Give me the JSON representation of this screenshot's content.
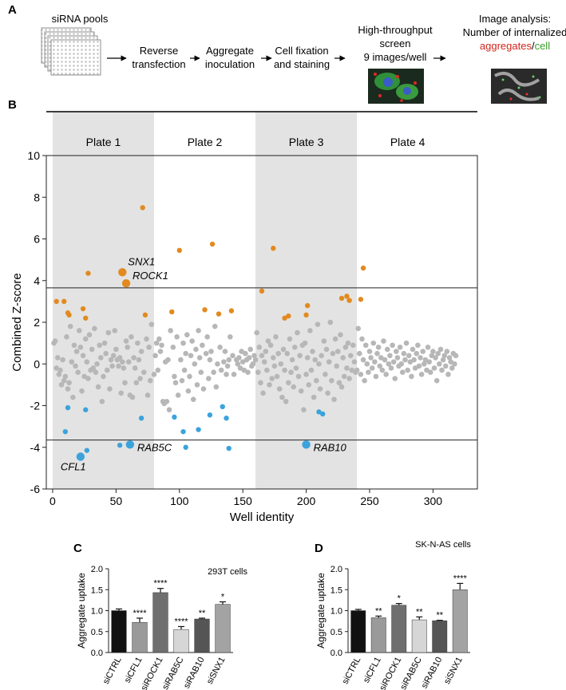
{
  "workflow": {
    "panel": "A",
    "pool_label": "siRNA pools",
    "steps": [
      [
        "Reverse",
        "transfection"
      ],
      [
        "Aggregate",
        "inoculation"
      ],
      [
        "Cell fixation",
        "and staining"
      ]
    ],
    "screen": [
      "High-throughput",
      "screen",
      "9 images/well"
    ],
    "analysis": {
      "lines": [
        "Image analysis:",
        "Number of internalized"
      ],
      "aggregates": "aggregates",
      "separator": "/",
      "cell": "cell",
      "aggregates_color": "#d2261c",
      "cell_color": "#3a9c2a"
    }
  },
  "chart_data": [
    {
      "type": "scatter",
      "panel": "B",
      "xlabel": "Well identity",
      "ylabel": "Combined Z-score",
      "xlim": [
        -5,
        335
      ],
      "ylim": [
        -6,
        10
      ],
      "xticks": [
        0,
        50,
        100,
        150,
        200,
        250,
        300
      ],
      "yticks": [
        -6,
        -4,
        -2,
        0,
        2,
        4,
        6,
        8,
        10
      ],
      "thresholds": [
        3.65,
        -3.65
      ],
      "plate_shading": "#e3e3e3",
      "plates": [
        {
          "label": "Plate 1",
          "range": [
            0,
            80
          ],
          "shaded": true
        },
        {
          "label": "Plate 2",
          "range": [
            80,
            160
          ],
          "shaded": false
        },
        {
          "label": "Plate 3",
          "range": [
            160,
            240
          ],
          "shaded": true
        },
        {
          "label": "Plate 4",
          "range": [
            240,
            320
          ],
          "shaded": false
        }
      ],
      "series": [
        {
          "color": "#b7b7b7",
          "x": [
            1,
            2,
            3,
            4,
            5,
            6,
            7,
            8,
            9,
            10,
            11,
            12,
            13,
            14,
            15,
            16,
            17,
            18,
            19,
            20,
            21,
            22,
            23,
            24,
            25,
            26,
            27,
            28,
            29,
            30,
            31,
            32,
            33,
            34,
            35,
            36,
            37,
            38,
            39,
            40,
            41,
            42,
            43,
            44,
            45,
            46,
            47,
            48,
            49,
            50,
            51,
            52,
            53,
            54,
            55,
            56,
            57,
            58,
            59,
            60,
            61,
            62,
            63,
            64,
            65,
            66,
            67,
            68,
            69,
            70,
            72,
            74,
            75,
            76,
            77,
            78,
            80,
            81,
            82,
            83,
            84,
            85,
            86,
            87,
            88,
            89,
            90,
            91,
            92,
            93,
            95,
            96,
            97,
            98,
            99,
            101,
            102,
            103,
            104,
            105,
            106,
            107,
            108,
            109,
            110,
            111,
            112,
            113,
            114,
            115,
            116,
            117,
            118,
            119,
            121,
            122,
            123,
            124,
            125,
            127,
            128,
            129,
            130,
            132,
            133,
            135,
            136,
            137,
            138,
            139,
            140,
            142,
            143,
            145,
            146,
            147,
            148,
            149,
            150,
            151,
            152,
            153,
            154,
            155,
            156,
            157,
            158,
            159,
            160,
            161,
            162,
            163,
            164,
            165,
            166,
            167,
            168,
            169,
            170,
            171,
            172,
            173,
            174,
            175,
            176,
            177,
            178,
            179,
            180,
            181,
            182,
            183,
            184,
            185,
            186,
            187,
            188,
            189,
            190,
            191,
            192,
            193,
            194,
            195,
            196,
            197,
            198,
            199,
            200,
            201,
            202,
            203,
            204,
            205,
            206,
            207,
            208,
            209,
            210,
            211,
            212,
            214,
            215,
            216,
            217,
            218,
            219,
            220,
            221,
            222,
            223,
            224,
            225,
            226,
            227,
            228,
            229,
            230,
            231,
            232,
            233,
            234,
            235,
            236,
            237,
            238,
            239,
            240,
            241,
            242,
            243,
            244,
            245,
            246,
            247,
            248,
            249,
            250,
            251,
            252,
            253,
            254,
            255,
            256,
            257,
            258,
            259,
            260,
            261,
            262,
            263,
            264,
            265,
            266,
            267,
            268,
            269,
            270,
            271,
            272,
            273,
            274,
            275,
            276,
            277,
            278,
            279,
            280,
            281,
            282,
            283,
            284,
            285,
            286,
            287,
            288,
            289,
            290,
            291,
            292,
            293,
            294,
            295,
            296,
            297,
            298,
            299,
            300,
            301,
            302,
            303,
            304,
            305,
            306,
            307,
            308,
            309,
            310,
            311,
            312,
            313,
            314,
            315,
            316,
            317,
            318
          ],
          "values": [
            1.0,
            1.1,
            -0.2,
            0.3,
            -0.5,
            -0.3,
            -1.0,
            0.2,
            -0.8,
            -0.6,
            1.3,
            -1.2,
            -0.9,
            1.8,
            0.1,
            -1.6,
            0.9,
            -0.1,
            0.6,
            -0.4,
            1.6,
            0.8,
            -1.3,
            0.4,
            -0.6,
            1.2,
            0.1,
            -0.7,
            1.4,
            -0.3,
            0.7,
            -0.2,
            1.7,
            -0.4,
            0.0,
            -1.1,
            0.9,
            0.3,
            -1.8,
            -0.6,
            1.0,
            0.5,
            -0.3,
            1.5,
            -1.2,
            0.2,
            -0.1,
            0.4,
            1.6,
            0.7,
            0.2,
            -0.1,
            0.3,
            -1.4,
            0.1,
            -0.2,
            -0.9,
            1.1,
            0.8,
            0.1,
            -1.5,
            1.3,
            -1.6,
            0.3,
            -0.2,
            -0.9,
            1.0,
            0.2,
            -0.7,
            0.6,
            -0.4,
            1.2,
            -1.5,
            0.8,
            -0.8,
            1.9,
            -0.5,
            0.4,
            1.0,
            -0.3,
            1.2,
            0.6,
            0.9,
            -1.8,
            -1.9,
            0.1,
            -1.8,
            0.2,
            -2.2,
            1.6,
            0.8,
            -0.6,
            -0.9,
            1.3,
            -1.5,
            0.2,
            -0.8,
            1.0,
            -0.3,
            0.5,
            1.4,
            -1.3,
            -0.6,
            0.4,
            1.1,
            -1.7,
            0.0,
            0.7,
            -1.0,
            1.6,
            0.3,
            -0.4,
            0.9,
            -1.2,
            0.5,
            1.3,
            -0.7,
            0.2,
            0.6,
            -0.4,
            1.8,
            -1.1,
            0.0,
            0.8,
            -0.3,
            0.1,
            0.6,
            -0.5,
            -0.1,
            0.2,
            1.3,
            0.4,
            -0.5,
            0.2,
            0.0,
            0.3,
            -0.2,
            0.6,
            0.1,
            -0.3,
            0.5,
            0.2,
            -0.4,
            0.3,
            0.7,
            -0.1,
            0.0,
            0.4,
            0.2,
            1.5,
            -0.4,
            0.8,
            -0.9,
            0.4,
            -1.4,
            0.1,
            0.6,
            -0.3,
            1.1,
            -1.0,
            0.9,
            -0.7,
            0.3,
            -0.1,
            1.3,
            -0.6,
            0.5,
            -1.2,
            0.0,
            -1.6,
            0.7,
            -0.3,
            -1.8,
            0.5,
            -0.9,
            1.2,
            -0.4,
            0.2,
            -1.1,
            0.8,
            -0.2,
            1.5,
            -0.6,
            0.4,
            -1.3,
            0.9,
            -2.2,
            1.0,
            -0.5,
            0.3,
            -1.0,
            1.6,
            -0.3,
            0.6,
            -1.6,
            0.2,
            -0.8,
            1.9,
            0.0,
            -1.2,
            0.4,
            1.1,
            -0.5,
            0.7,
            -1.4,
            0.1,
            2.0,
            -0.8,
            0.5,
            -1.7,
            1.2,
            -0.1,
            0.6,
            -0.9,
            1.4,
            -1.1,
            0.3,
            -0.6,
            0.8,
            -0.2,
            1.0,
            -0.7,
            0.4,
            -0.3,
            0.9,
            0.1,
            -0.4,
            -0.3,
            1.7,
            0.5,
            -0.5,
            1.2,
            0.2,
            -0.8,
            0.9,
            0.0,
            -0.4,
            0.6,
            0.3,
            -0.2,
            1.0,
            0.1,
            -0.6,
            0.5,
            0.8,
            -0.1,
            0.3,
            -0.3,
            1.1,
            0.2,
            -0.5,
            0.7,
            0.0,
            0.4,
            -0.2,
            0.9,
            0.1,
            -0.7,
            0.6,
            0.3,
            -0.1,
            0.8,
            0.0,
            -0.4,
            0.5,
            0.2,
            1.0,
            -0.3,
            0.4,
            0.1,
            -0.6,
            0.7,
            0.2,
            -0.2,
            0.5,
            0.9,
            -0.1,
            0.3,
            -0.5,
            0.6,
            0.0,
            0.2,
            -0.3,
            0.8,
            0.1,
            -0.4,
            0.4,
            0.6,
            -0.2,
            0.3,
            -0.8,
            0.5,
            0.0,
            0.7,
            -0.3,
            0.2,
            0.4,
            -0.1,
            0.6,
            -0.5,
            0.3,
            0.1,
            -0.2,
            0.5,
            0.0,
            0.4
          ]
        },
        {
          "color": "#e28a1f",
          "x": [
            3,
            9,
            12,
            13,
            24,
            26,
            28,
            71,
            73,
            94,
            100,
            120,
            126,
            131,
            141,
            165,
            174,
            183,
            186,
            200,
            201,
            228,
            232,
            234,
            243,
            245
          ],
          "values": [
            3.0,
            3.0,
            2.45,
            2.35,
            2.65,
            2.2,
            4.35,
            7.5,
            2.35,
            2.5,
            5.45,
            2.6,
            5.75,
            2.4,
            2.55,
            3.5,
            5.55,
            2.2,
            2.3,
            2.35,
            2.8,
            3.15,
            3.25,
            3.05,
            3.1,
            4.6
          ]
        },
        {
          "color": "#3ba3dc",
          "x": [
            10,
            12,
            26,
            27,
            53,
            70,
            96,
            103,
            105,
            115,
            124,
            134,
            137,
            139,
            210,
            213
          ],
          "values": [
            -3.25,
            -2.1,
            -2.2,
            -4.15,
            -3.9,
            -2.6,
            -2.55,
            -3.25,
            -4.0,
            -3.15,
            -2.45,
            -2.05,
            -2.6,
            -4.05,
            -2.3,
            -2.4
          ]
        }
      ],
      "highlights": [
        {
          "label": "SNX1",
          "x": 55,
          "y": 4.4,
          "color": "#e28a1f"
        },
        {
          "label": "ROCK1",
          "x": 58,
          "y": 3.87,
          "color": "#e28a1f"
        },
        {
          "label": "CFL1",
          "x": 22,
          "y": -4.45,
          "color": "#3ba3dc"
        },
        {
          "label": "RAB5C",
          "x": 61,
          "y": -3.87,
          "color": "#3ba3dc"
        },
        {
          "label": "RAB10",
          "x": 200,
          "y": -3.87,
          "color": "#3ba3dc"
        }
      ]
    },
    {
      "type": "bar",
      "panel": "C",
      "ylabel": "Aggregate uptake",
      "annotation": "293T cells",
      "categories": [
        "siCTRL",
        "siCFL1",
        "siROCK1",
        "siRAB5C",
        "siRAB10",
        "siSNX1"
      ],
      "values": [
        1.0,
        0.72,
        1.43,
        0.55,
        0.8,
        1.15
      ],
      "errors": [
        0.04,
        0.1,
        0.1,
        0.07,
        0.02,
        0.06
      ],
      "value_labels": [
        null,
        "****",
        "****",
        "****",
        "**",
        "*"
      ],
      "colors": [
        "#111111",
        "#9a9a9a",
        "#6f6f6f",
        "#d6d6d6",
        "#555555",
        "#a3a3a3"
      ],
      "ylim": [
        0,
        2
      ],
      "yticks": [
        {
          "value": 0,
          "label": "0.0"
        },
        0.5,
        {
          "value": 1,
          "label": "1.0"
        },
        1.5,
        {
          "value": 2,
          "label": "2.0"
        }
      ]
    },
    {
      "type": "bar",
      "panel": "D",
      "ylabel": "Aggregate uptake",
      "annotation": "SK-N-AS cells",
      "categories": [
        "siCTRL",
        "siCFL1",
        "siROCK1",
        "siRAB5C",
        "siRAB10",
        "siSNX1"
      ],
      "values": [
        1.0,
        0.83,
        1.13,
        0.78,
        0.76,
        1.5
      ],
      "errors": [
        0.03,
        0.04,
        0.04,
        0.07,
        0.01,
        0.15
      ],
      "value_labels": [
        null,
        "**",
        "*",
        "**",
        "**",
        "****"
      ],
      "colors": [
        "#111111",
        "#9a9a9a",
        "#6f6f6f",
        "#d6d6d6",
        "#555555",
        "#a3a3a3"
      ],
      "ylim": [
        0,
        2
      ],
      "yticks": [
        {
          "value": 0,
          "label": "0.0"
        },
        0.5,
        {
          "value": 1,
          "label": "1.0"
        },
        1.5,
        {
          "value": 2,
          "label": "2.0"
        }
      ]
    }
  ]
}
